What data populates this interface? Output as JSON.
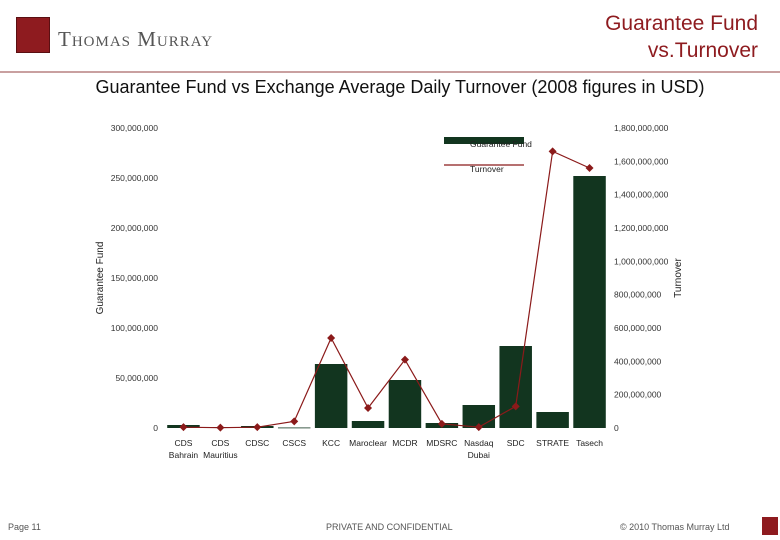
{
  "header": {
    "brand": "Thomas Murray",
    "title": "Guarantee Fund\nvs.Turnover"
  },
  "footer": {
    "page": "Page 11",
    "confidential": "PRIVATE AND CONFIDENTIAL",
    "copyright": "© 2010 Thomas Murray Ltd"
  },
  "colors": {
    "accent": "#8e1b1f",
    "bar": "#12351f",
    "line": "#8b1a1a"
  },
  "chart_data": {
    "type": "bar",
    "title": "Guarantee Fund vs Exchange Average Daily Turnover (2008 figures in USD)",
    "categories": [
      "CDS Bahrain",
      "CDS Mauritius",
      "CDSC",
      "CSCS",
      "KCC",
      "Maroclear",
      "MCDR",
      "MDSRC",
      "Nasdaq Dubai",
      "SDC",
      "STRATE",
      "Tasech"
    ],
    "category_lines": [
      [
        "CDS",
        "Bahrain"
      ],
      [
        "CDS",
        "Mauritius"
      ],
      [
        "CDSC"
      ],
      [
        "CSCS"
      ],
      [
        "KCC"
      ],
      [
        "Maroclear"
      ],
      [
        "MCDR"
      ],
      [
        "MDSRC"
      ],
      [
        "Nasdaq",
        "Dubai"
      ],
      [
        "SDC"
      ],
      [
        "STRATE"
      ],
      [
        "Tasech"
      ]
    ],
    "ylabel": "Guarantee Fund",
    "y2label": "Turnover",
    "ylim": [
      0,
      300000000
    ],
    "y2lim": [
      0,
      1800000000
    ],
    "yticks": [
      "0",
      "50,000,000",
      "100,000,000",
      "150,000,000",
      "200,000,000",
      "250,000,000",
      "300,000,000"
    ],
    "y2ticks": [
      "0",
      "200,000,000",
      "400,000,000",
      "600,000,000",
      "800,000,000",
      "1,000,000,000",
      "1,200,000,000",
      "1,400,000,000",
      "1,600,000,000",
      "1,800,000,000"
    ],
    "legend_position": "top-right",
    "series": [
      {
        "name": "Guarantee Fund",
        "type": "bar",
        "axis": "left",
        "values": [
          3000000,
          1000000,
          2000000,
          500000,
          64000000,
          7000000,
          48000000,
          5000000,
          23000000,
          82000000,
          16000000,
          252000000
        ]
      },
      {
        "name": "Turnover",
        "type": "line",
        "axis": "right",
        "values": [
          5000000,
          2000000,
          5000000,
          40000000,
          540000000,
          120000000,
          410000000,
          25000000,
          5000000,
          130000000,
          1660000000,
          1560000000
        ]
      }
    ]
  }
}
